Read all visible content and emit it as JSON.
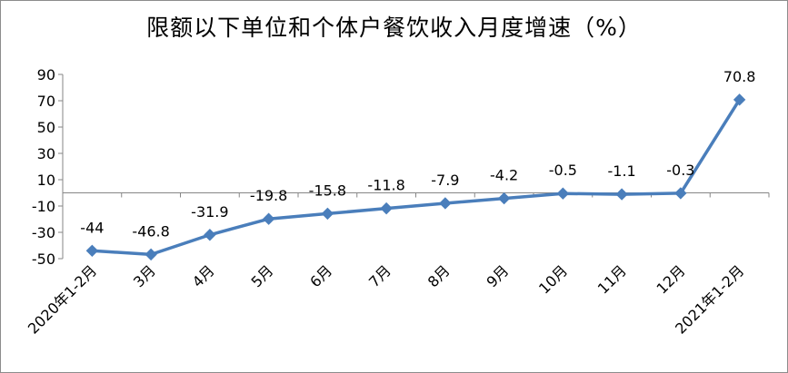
{
  "chart_data": {
    "type": "line",
    "title": "限额以下单位和个体户餐饮收入月度增速（%）",
    "categories": [
      "2020年1-2月",
      "3月",
      "4月",
      "5月",
      "6月",
      "7月",
      "8月",
      "9月",
      "10月",
      "11月",
      "12月",
      "2021年1-2月"
    ],
    "series": [
      {
        "values": [
          -44,
          -46.8,
          -31.9,
          -19.8,
          -15.8,
          -11.8,
          -7.9,
          -4.2,
          -0.5,
          -1.1,
          -0.3,
          70.8
        ],
        "labels": [
          "-44",
          "-46.8",
          "-31.9",
          "-19.8",
          "-15.8",
          "-11.8",
          "-7.9",
          "-4.2",
          "-0.5",
          "-1.1",
          "-0.3",
          "70.8"
        ],
        "color": "#4a7ebb"
      }
    ],
    "y_ticks": [
      "90",
      "70",
      "50",
      "30",
      "10",
      "-10",
      "-30",
      "-50"
    ],
    "ylim": [
      -50,
      90
    ],
    "grid": false,
    "legend": "none"
  }
}
